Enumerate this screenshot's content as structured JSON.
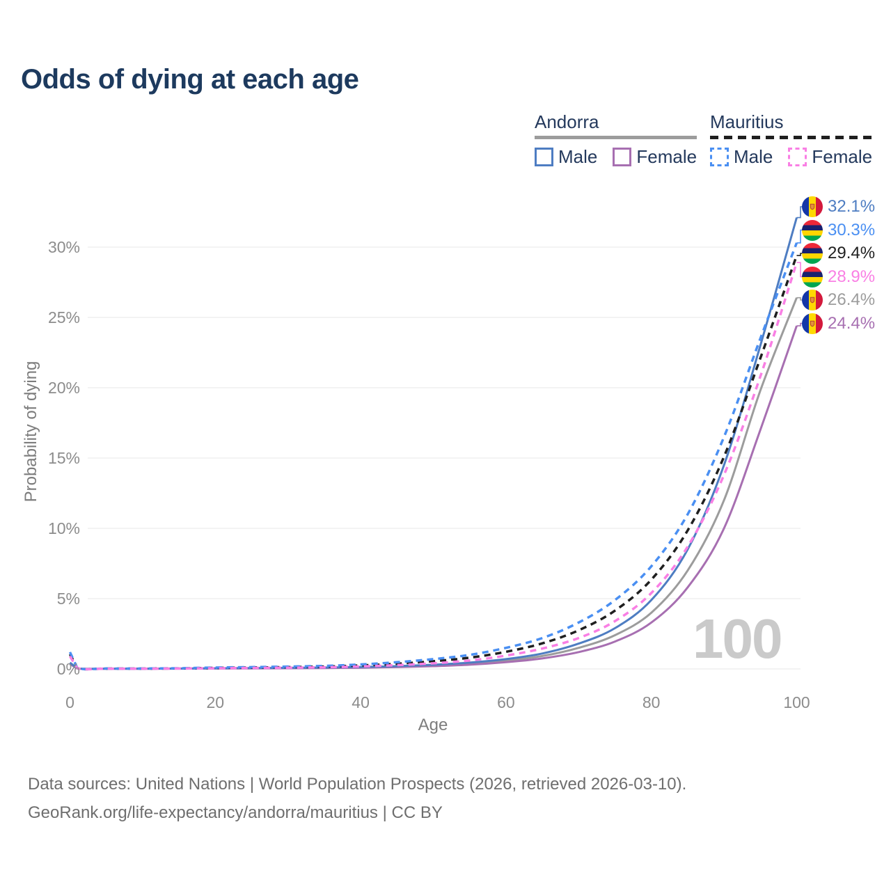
{
  "title": "Odds of dying at each age",
  "legend": {
    "groups": [
      {
        "country": "Andorra",
        "line_style": "solid",
        "combined_series": "andorra_combined",
        "items": [
          {
            "label": "Male",
            "series": "andorra_male"
          },
          {
            "label": "Female",
            "series": "andorra_female"
          }
        ]
      },
      {
        "country": "Mauritius",
        "line_style": "dashed",
        "combined_series": "mauritius_combined",
        "items": [
          {
            "label": "Male",
            "series": "mauritius_male"
          },
          {
            "label": "Female",
            "series": "mauritius_female"
          }
        ]
      }
    ]
  },
  "chart_data": {
    "type": "line",
    "title": "Odds of dying at each age",
    "xlabel": "Age",
    "ylabel": "Probability of dying",
    "xlim": [
      0,
      100
    ],
    "ylim": [
      0,
      33
    ],
    "grid": "horizontal-only",
    "x_ticks": [
      0,
      20,
      40,
      60,
      80,
      100
    ],
    "x_tick_labels": [
      "0",
      "20",
      "40",
      "60",
      "80",
      "100"
    ],
    "y_ticks": [
      0,
      5,
      10,
      15,
      20,
      25,
      30
    ],
    "y_tick_labels_top_down": [
      "30%",
      "25%",
      "20%",
      "15%",
      "10%",
      "5%",
      "0%"
    ],
    "watermark": "100",
    "ages": [
      0,
      1,
      5,
      10,
      15,
      20,
      25,
      30,
      35,
      40,
      45,
      50,
      55,
      60,
      65,
      70,
      75,
      80,
      85,
      90,
      95,
      100
    ],
    "draw_order": [
      "andorra_combined",
      "andorra_female",
      "andorra_male",
      "mauritius_combined",
      "mauritius_male",
      "mauritius_female"
    ],
    "series": [
      {
        "id": "andorra_male",
        "name": "Andorra Male",
        "country": "Andorra",
        "flag": "andorra",
        "color": "#4e7dc2",
        "dashed": false,
        "end_label": "32.1%",
        "values": [
          0.45,
          0.04,
          0.02,
          0.02,
          0.03,
          0.05,
          0.06,
          0.08,
          0.1,
          0.14,
          0.2,
          0.3,
          0.45,
          0.7,
          1.1,
          1.8,
          2.9,
          4.9,
          8.5,
          14.5,
          23.0,
          32.1
        ]
      },
      {
        "id": "andorra_female",
        "name": "Andorra Female",
        "country": "Andorra",
        "flag": "andorra",
        "color": "#a76fb1",
        "dashed": false,
        "end_label": "24.4%",
        "values": [
          0.35,
          0.03,
          0.015,
          0.015,
          0.02,
          0.03,
          0.04,
          0.05,
          0.06,
          0.09,
          0.13,
          0.2,
          0.3,
          0.48,
          0.75,
          1.2,
          1.95,
          3.3,
          5.8,
          10.0,
          17.0,
          24.4
        ]
      },
      {
        "id": "andorra_combined",
        "name": "Andorra Combined",
        "country": "Andorra",
        "flag": "andorra",
        "color": "#9c9c9c",
        "dashed": false,
        "end_label": "26.4%",
        "values": [
          0.4,
          0.035,
          0.018,
          0.018,
          0.025,
          0.04,
          0.05,
          0.065,
          0.08,
          0.115,
          0.165,
          0.25,
          0.38,
          0.59,
          0.92,
          1.5,
          2.4,
          4.0,
          7.0,
          12.0,
          19.8,
          26.4
        ]
      },
      {
        "id": "mauritius_male",
        "name": "Mauritius Male",
        "country": "Mauritius",
        "flag": "mauritius",
        "color": "#4a8ff2",
        "dashed": true,
        "end_label": "30.3%",
        "values": [
          1.2,
          0.08,
          0.03,
          0.03,
          0.05,
          0.1,
          0.13,
          0.17,
          0.22,
          0.32,
          0.48,
          0.7,
          1.0,
          1.5,
          2.2,
          3.3,
          4.9,
          7.3,
          11.0,
          16.5,
          23.5,
          30.3
        ]
      },
      {
        "id": "mauritius_female",
        "name": "Mauritius Female",
        "country": "Mauritius",
        "flag": "mauritius",
        "color": "#f97fe4",
        "dashed": true,
        "end_label": "28.9%",
        "values": [
          0.9,
          0.06,
          0.02,
          0.02,
          0.03,
          0.05,
          0.07,
          0.09,
          0.12,
          0.18,
          0.27,
          0.4,
          0.6,
          0.95,
          1.45,
          2.2,
          3.4,
          5.4,
          8.7,
          13.8,
          20.8,
          28.9
        ]
      },
      {
        "id": "mauritius_combined",
        "name": "Mauritius Combined",
        "country": "Mauritius",
        "flag": "mauritius",
        "color": "#1f1f1f",
        "dashed": true,
        "end_label": "29.4%",
        "values": [
          1.05,
          0.07,
          0.025,
          0.025,
          0.04,
          0.075,
          0.1,
          0.13,
          0.17,
          0.25,
          0.37,
          0.55,
          0.8,
          1.22,
          1.82,
          2.75,
          4.15,
          6.35,
          9.85,
          15.1,
          22.1,
          29.4
        ]
      }
    ],
    "flag_colors": {
      "andorra": {
        "blue": "#1437a8",
        "yellow": "#fed903",
        "red": "#d3193c",
        "emblem": "#e3923c",
        "emblem_border": "#b5432e"
      },
      "mauritius": {
        "red": "#ee2839",
        "blue": "#19216f",
        "yellow": "#ffd500",
        "green": "#00a64f"
      }
    },
    "gridline_color": "#ececec"
  },
  "footer": {
    "line1": "Data sources: United Nations | World Population Prospects (2026, retrieved 2026-03-10).",
    "line2": "GeoRank.org/life-expectancy/andorra/mauritius | CC BY"
  }
}
